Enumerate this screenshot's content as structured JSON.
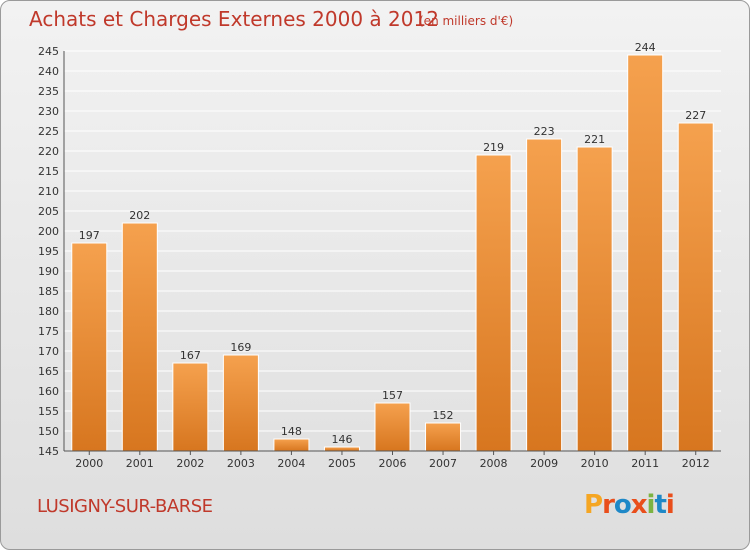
{
  "header": {
    "title": "Achats et Charges Externes 2000 à 2012",
    "unit": "(en milliers d'€)"
  },
  "footer": {
    "commune": "LUSIGNY-SUR-BARSE",
    "logo_text": "Proxiti",
    "logo_colors": [
      "#f5a623",
      "#e94e1b",
      "#1e88c7",
      "#e94e1b",
      "#7cb342",
      "#1e88c7",
      "#e94e1b"
    ]
  },
  "colors": {
    "bar_top": "#f5a14e",
    "bar_bottom": "#d7761f",
    "bar_edge": "#ffffff",
    "grid": "#ffffff",
    "axis_text": "#333333",
    "title": "#c0392b"
  },
  "chart_data": {
    "type": "bar",
    "title": "Achats et Charges Externes 2000 à 2012",
    "subtitle": "(en milliers d'€)",
    "categories": [
      "2000",
      "2001",
      "2002",
      "2003",
      "2004",
      "2005",
      "2006",
      "2007",
      "2008",
      "2009",
      "2010",
      "2011",
      "2012"
    ],
    "values": [
      197,
      202,
      167,
      169,
      148,
      146,
      157,
      152,
      219,
      223,
      221,
      244,
      227
    ],
    "ylim": [
      145,
      245
    ],
    "yticks": [
      145,
      150,
      155,
      160,
      165,
      170,
      175,
      180,
      185,
      190,
      195,
      200,
      205,
      210,
      215,
      220,
      225,
      230,
      235,
      240,
      245
    ],
    "grid": true,
    "xlabel": "",
    "ylabel": ""
  }
}
